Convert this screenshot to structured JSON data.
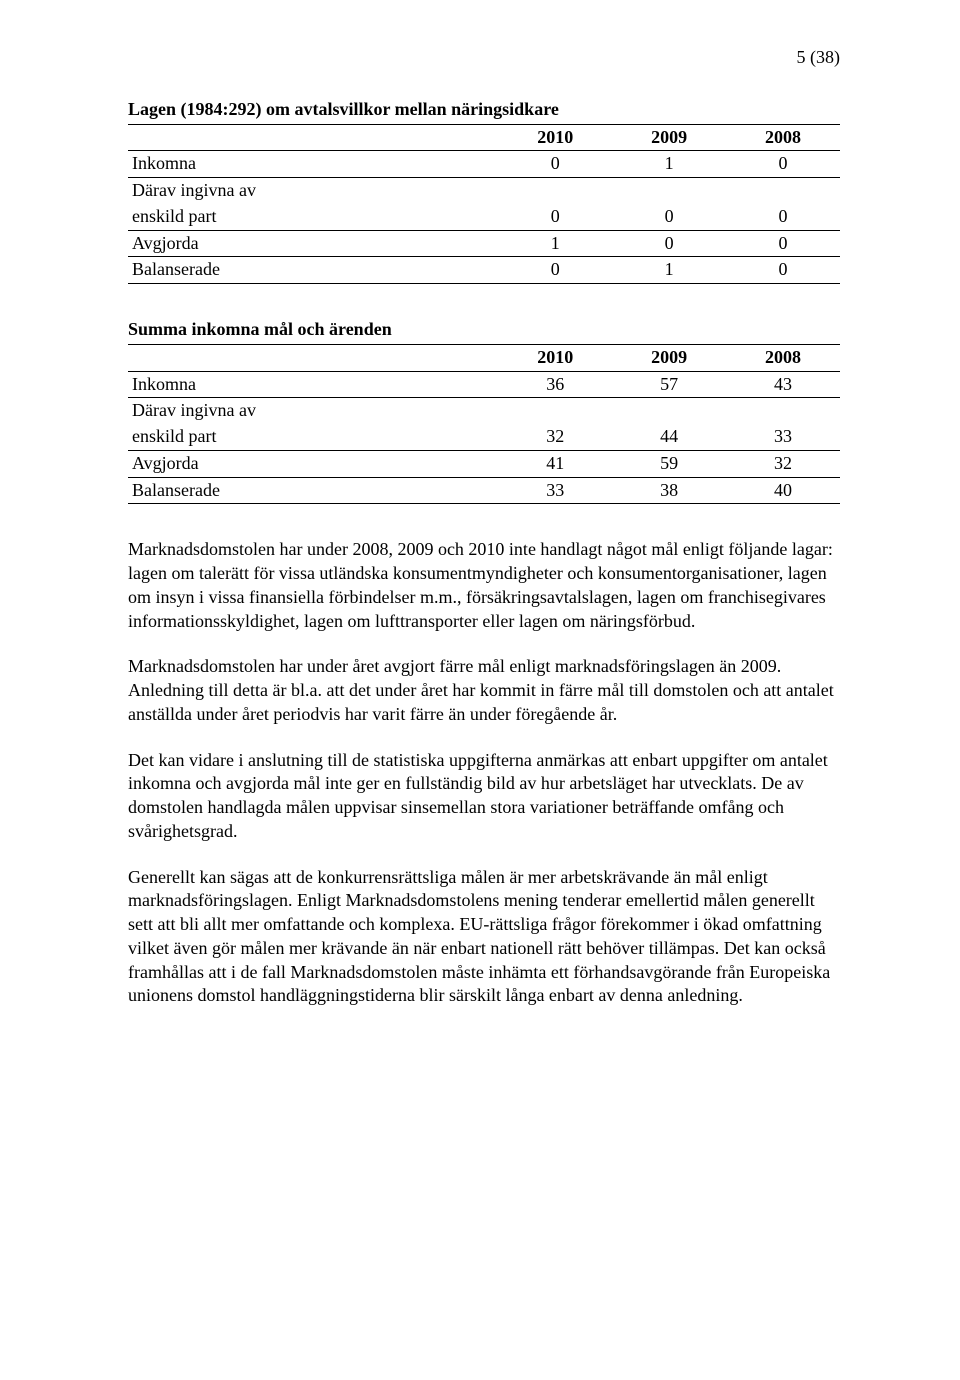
{
  "page_number": "5 (38)",
  "table1": {
    "title": "Lagen (1984:292) om avtalsvillkor mellan näringsidkare",
    "years": [
      "2010",
      "2009",
      "2008"
    ],
    "rows": [
      {
        "label": "Inkomna",
        "vals": [
          "0",
          "1",
          "0"
        ],
        "rule": true
      },
      {
        "label": "Därav ingivna av",
        "vals": [
          "",
          "",
          ""
        ],
        "rule": false
      },
      {
        "label": "enskild part",
        "vals": [
          "0",
          "0",
          "0"
        ],
        "rule": true
      },
      {
        "label": "Avgjorda",
        "vals": [
          "1",
          "0",
          "0"
        ],
        "rule": true
      },
      {
        "label": "Balanserade",
        "vals": [
          "0",
          "1",
          "0"
        ],
        "rule": true,
        "last": true
      }
    ]
  },
  "table2": {
    "title": "Summa inkomna mål och ärenden",
    "years": [
      "2010",
      "2009",
      "2008"
    ],
    "rows": [
      {
        "label": "Inkomna",
        "vals": [
          "36",
          "57",
          "43"
        ],
        "rule": true
      },
      {
        "label": "Därav ingivna av",
        "vals": [
          "",
          "",
          ""
        ],
        "rule": false
      },
      {
        "label": "enskild part",
        "vals": [
          "32",
          "44",
          "33"
        ],
        "rule": true
      },
      {
        "label": "Avgjorda",
        "vals": [
          "41",
          "59",
          "32"
        ],
        "rule": true
      },
      {
        "label": "Balanserade",
        "vals": [
          "33",
          "38",
          "40"
        ],
        "rule": true,
        "last": true
      }
    ]
  },
  "paragraphs": [
    "Marknadsdomstolen har under 2008, 2009 och 2010 inte handlagt något mål enligt följande lagar: lagen om talerätt för vissa utländska konsumentmyndigheter och konsumentorganisationer, lagen om insyn i vissa finansiella förbindelser m.m., försäkringsavtalslagen, lagen om franchisegivares informationsskyldighet, lagen om lufttransporter eller lagen om näringsförbud.",
    "Marknadsdomstolen har under året avgjort färre mål enligt marknadsföringslagen än 2009. Anledning till detta är bl.a. att det under året har kommit in färre mål till domstolen och att antalet anställda under året periodvis har varit färre än under föregående år.",
    "Det kan vidare i anslutning till de statistiska uppgifterna anmärkas att enbart uppgifter om antalet inkomna och avgjorda mål inte ger en fullständig bild av hur arbetsläget har utvecklats. De av domstolen handlagda målen uppvisar sinsemellan stora variationer beträffande omfång och svårighetsgrad.",
    "Generellt kan sägas att de konkurrensrättsliga målen är mer arbetskrävande än mål enligt marknadsföringslagen. Enligt Marknadsdomstolens mening tenderar emellertid målen generellt sett att bli allt mer omfattande och komplexa. EU-rättsliga frågor förekommer i ökad omfattning vilket även gör målen mer krävande än när enbart nationell rätt behöver tillämpas. Det kan också framhållas att i de fall Marknadsdomstolen måste inhämta ett förhandsavgörande från Europeiska unionens domstol handläggningstiderna blir särskilt långa enbart av denna anledning."
  ]
}
